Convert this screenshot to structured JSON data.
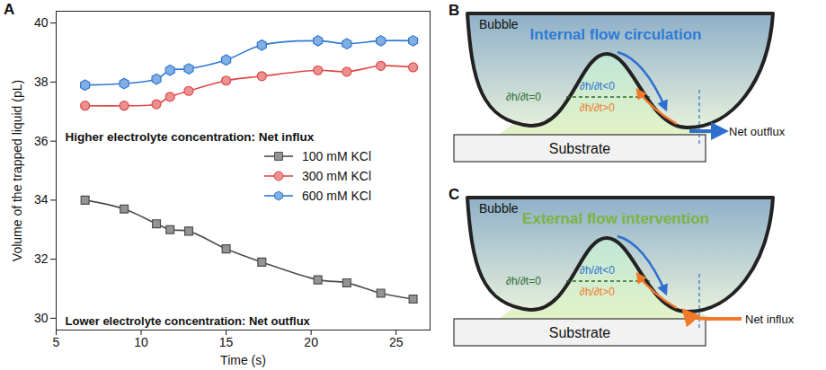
{
  "chart_data": {
    "type": "line",
    "panel_label": "A",
    "x_label": "Time (s)",
    "y_label": "Volume of the trapped liquid (pL)",
    "x": [
      6.7,
      9,
      10.9,
      11.7,
      12.8,
      15,
      17.1,
      20.4,
      22.1,
      24.1,
      26
    ],
    "series": [
      {
        "name": "100 mM KCl",
        "color": "#4d4d4d",
        "marker": "square",
        "line_style": "solid",
        "values": [
          34.0,
          33.7,
          33.2,
          33.0,
          32.95,
          32.35,
          31.9,
          31.3,
          31.2,
          30.85,
          30.65
        ]
      },
      {
        "name": "300 mM KCl",
        "color": "#e04848",
        "marker": "circle",
        "line_style": "solid",
        "values": [
          37.2,
          37.2,
          37.25,
          37.5,
          37.7,
          38.05,
          38.2,
          38.4,
          38.35,
          38.55,
          38.5
        ]
      },
      {
        "name": "600 mM KCl",
        "color": "#2f78d0",
        "marker": "hexagon",
        "line_style": "solid",
        "values": [
          37.9,
          37.95,
          38.1,
          38.4,
          38.45,
          38.75,
          39.25,
          39.4,
          39.3,
          39.4,
          39.4
        ]
      }
    ],
    "annotations": [
      "Higher electrolyte concentration: Net influx",
      "Lower electrolyte concentration: Net outflux"
    ],
    "xlim": [
      5,
      27
    ],
    "xticks": [
      5,
      10,
      15,
      20,
      25
    ],
    "ylim": [
      29.6,
      40.4
    ],
    "yticks": [
      30,
      32,
      34,
      36,
      38,
      40
    ],
    "grid": false,
    "legend": "right"
  },
  "diagrams": [
    {
      "panel_label": "B",
      "bubble_label": "Bubble",
      "title": "Internal flow circulation",
      "title_color": "#2e7bd6",
      "labels": {
        "steady": "∂h/∂t=0",
        "falling": "∂h/∂t<0",
        "rising": "∂h/∂t>0"
      },
      "substrate": "Substrate",
      "flux": "Net outflux",
      "flux_direction": "out"
    },
    {
      "panel_label": "C",
      "bubble_label": "Bubble",
      "title": "External flow intervention",
      "title_color": "#7cb342",
      "labels": {
        "steady": "∂h/∂t=0",
        "falling": "∂h/∂t<0",
        "rising": "∂h/∂t>0"
      },
      "substrate": "Substrate",
      "flux": "Net influx",
      "flux_direction": "in"
    }
  ]
}
